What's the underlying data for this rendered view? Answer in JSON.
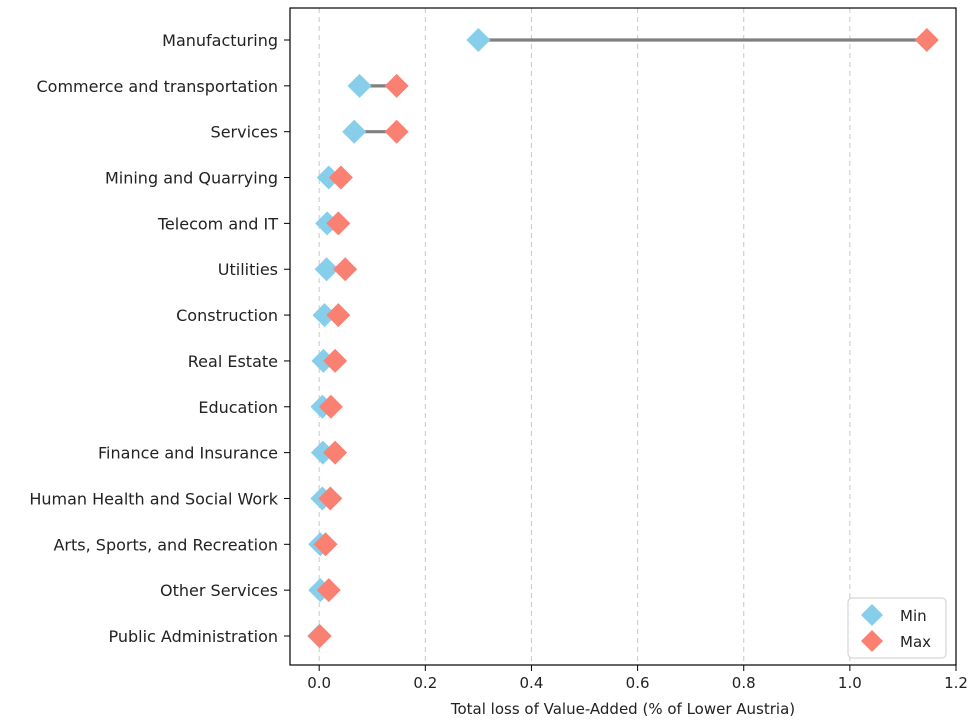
{
  "chart_data": {
    "type": "dumbbell",
    "title": "",
    "xlabel": "Total loss of Value-Added (% of Lower Austria)",
    "ylabel": "",
    "xlim": [
      -0.055,
      1.2
    ],
    "xticks": [
      0.0,
      0.2,
      0.4,
      0.6,
      0.8,
      1.0,
      1.2
    ],
    "xtick_labels": [
      "0.0",
      "0.2",
      "0.4",
      "0.6",
      "0.8",
      "1.0",
      "1.2"
    ],
    "grid": {
      "x": true,
      "y": false,
      "style": "dashed"
    },
    "legend": {
      "position": "bottom-right"
    },
    "series": [
      {
        "name": "Min",
        "color": "#87ceeb",
        "marker": "diamond"
      },
      {
        "name": "Max",
        "color": "#fa8072",
        "marker": "diamond"
      }
    ],
    "connector_color": "#808080",
    "categories": [
      "Manufacturing",
      "Commerce and transportation",
      "Services",
      "Mining and Quarrying",
      "Telecom and IT",
      "Utilities",
      "Construction",
      "Real Estate",
      "Education",
      "Finance and Insurance",
      "Human Health and Social Work",
      "Arts, Sports, and Recreation",
      "Other Services",
      "Public Administration"
    ],
    "min": [
      0.3,
      0.076,
      0.066,
      0.018,
      0.015,
      0.014,
      0.01,
      0.008,
      0.006,
      0.007,
      0.006,
      0.002,
      0.002,
      0.0
    ],
    "max": [
      1.145,
      0.146,
      0.146,
      0.041,
      0.036,
      0.049,
      0.036,
      0.03,
      0.022,
      0.03,
      0.021,
      0.012,
      0.018,
      0.001
    ]
  }
}
